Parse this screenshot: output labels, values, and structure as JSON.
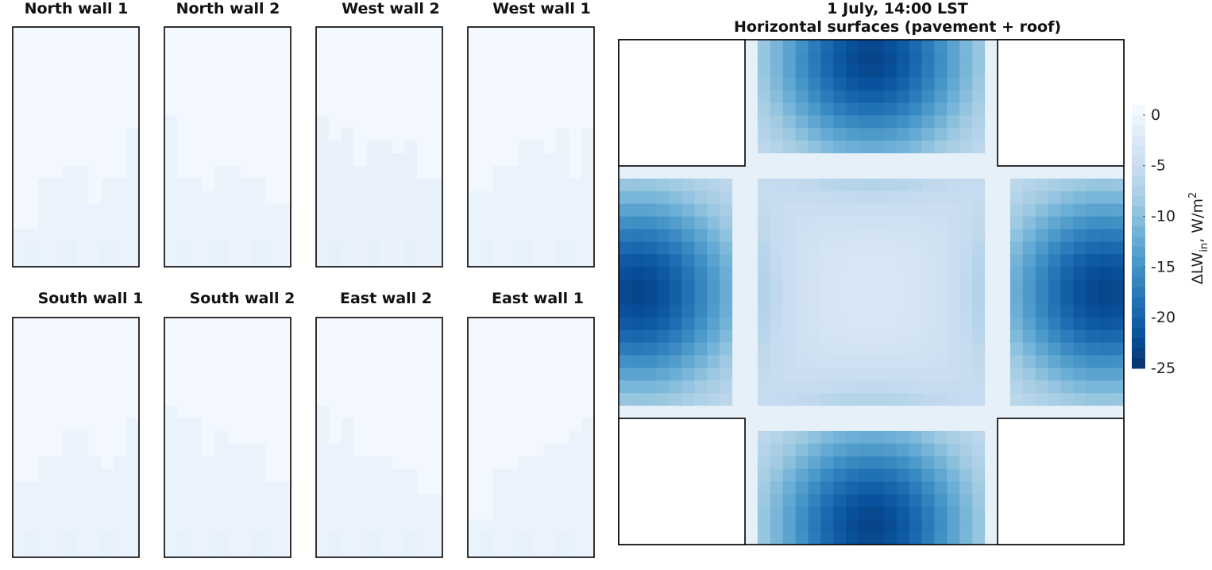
{
  "figure": {
    "title_line1": "1 July, 14:00 LST",
    "title_line2": "Horizontal surfaces (pavement + roof)"
  },
  "colorbar": {
    "label_main": "ΔLW",
    "label_sub": "in",
    "label_rest": ", W/m",
    "label_sup": "2",
    "ticks": [
      "0",
      "-5",
      "-10",
      "-15",
      "-20",
      "-25"
    ],
    "range": [
      -25,
      1
    ]
  },
  "chart_data": [
    {
      "type": "heatmap",
      "title": "North wall 1",
      "columns": 10,
      "rows": 19,
      "column_heights": [
        3,
        3,
        7,
        7,
        8,
        8,
        5,
        7,
        7,
        11
      ],
      "pale_value": -0.6,
      "white_value": 0.5,
      "note": "heights = number of pale cells from wall base"
    },
    {
      "type": "heatmap",
      "title": "North wall 2",
      "columns": 10,
      "rows": 19,
      "column_heights": [
        12,
        7,
        7,
        6,
        8,
        8,
        7,
        7,
        5,
        5
      ],
      "pale_value": -0.6,
      "white_value": 0.5
    },
    {
      "type": "heatmap",
      "title": "West wall 2",
      "columns": 10,
      "rows": 19,
      "column_heights": [
        12,
        10,
        11,
        8,
        10,
        10,
        9,
        10,
        7,
        7
      ],
      "pale_value": -0.7,
      "white_value": 0.5
    },
    {
      "type": "heatmap",
      "title": "West wall 1",
      "columns": 10,
      "rows": 19,
      "column_heights": [
        6,
        6,
        8,
        8,
        10,
        10,
        9,
        11,
        7,
        11
      ],
      "pale_value": -0.6,
      "white_value": 0.5
    },
    {
      "type": "heatmap",
      "title": "South wall 1",
      "columns": 10,
      "rows": 19,
      "column_heights": [
        6,
        6,
        8,
        8,
        10,
        10,
        8,
        7,
        8,
        11
      ],
      "pale_value": -0.6,
      "white_value": 0.5
    },
    {
      "type": "heatmap",
      "title": "South wall 2",
      "columns": 10,
      "rows": 19,
      "column_heights": [
        12,
        11,
        11,
        8,
        10,
        9,
        9,
        9,
        6,
        6
      ],
      "pale_value": -0.6,
      "white_value": 0.5
    },
    {
      "type": "heatmap",
      "title": "East wall 2",
      "columns": 10,
      "rows": 19,
      "column_heights": [
        12,
        9,
        11,
        8,
        8,
        8,
        7,
        7,
        5,
        5
      ],
      "pale_value": -0.6,
      "white_value": 0.5
    },
    {
      "type": "heatmap",
      "title": "East wall 1",
      "columns": 10,
      "rows": 19,
      "column_heights": [
        3,
        3,
        7,
        7,
        8,
        8,
        9,
        9,
        10,
        11
      ],
      "pale_value": -0.6,
      "white_value": 0.5
    },
    {
      "type": "heatmap",
      "title": "Horizontal surfaces (pavement + roof)",
      "grid": [
        40,
        40
      ],
      "layout": "cross-shaped street canyon; four roof blocks in the corners shown blank",
      "background_value": -2.5,
      "hotspots": [
        {
          "location": "top street end",
          "min_value": -23
        },
        {
          "location": "bottom street end",
          "min_value": -23
        },
        {
          "location": "left street end",
          "min_value": -23
        },
        {
          "location": "right street end",
          "min_value": -23
        }
      ],
      "colorbar_range": [
        -25,
        1
      ]
    }
  ]
}
